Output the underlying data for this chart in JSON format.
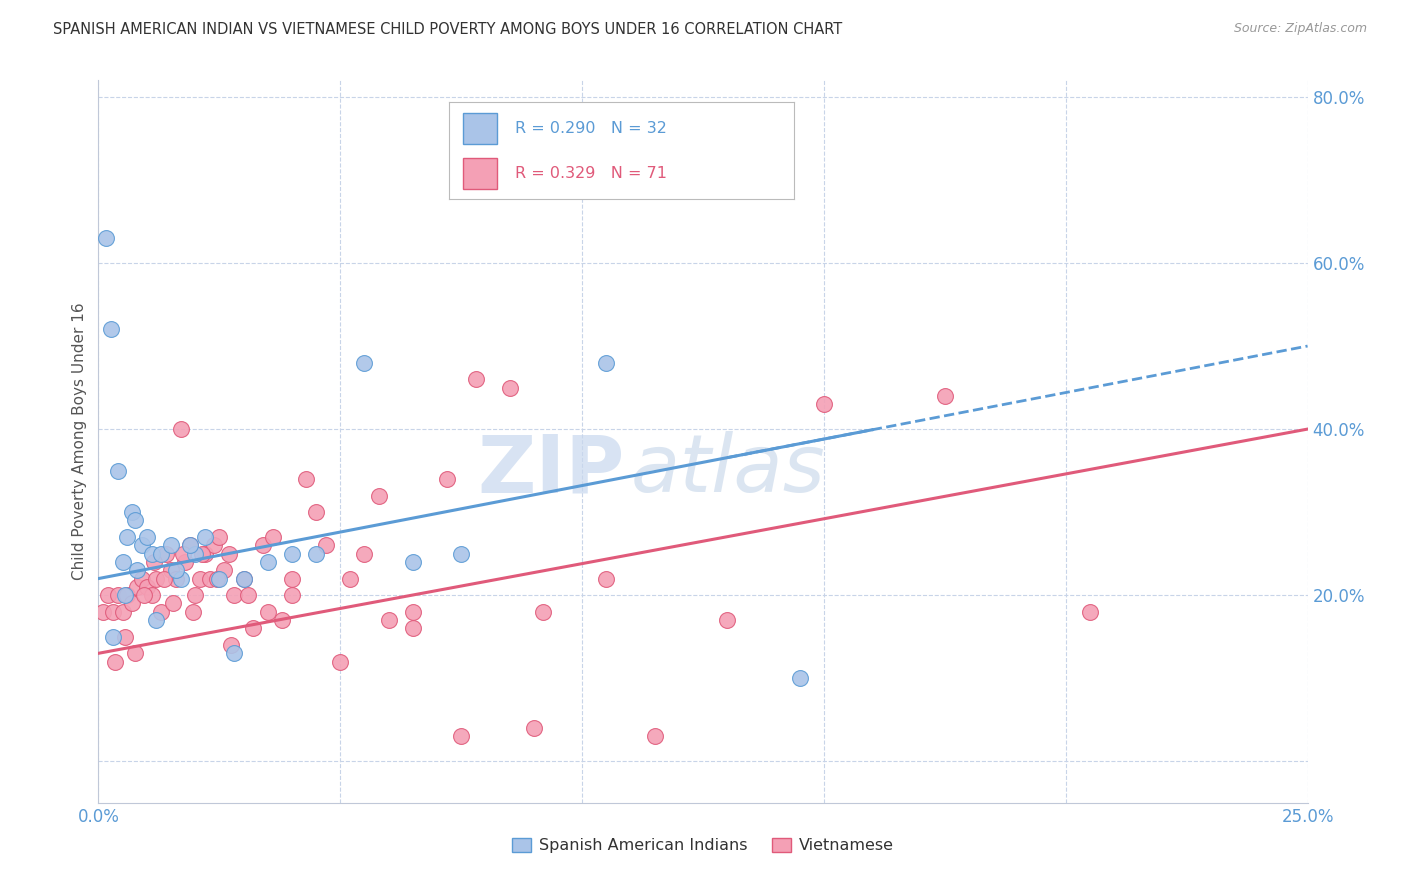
{
  "title": "SPANISH AMERICAN INDIAN VS VIETNAMESE CHILD POVERTY AMONG BOYS UNDER 16 CORRELATION CHART",
  "source": "Source: ZipAtlas.com",
  "ylabel": "Child Poverty Among Boys Under 16",
  "xlim": [
    0.0,
    25.0
  ],
  "ylim": [
    -5.0,
    82.0
  ],
  "yticks": [
    0,
    20,
    40,
    60,
    80
  ],
  "ytick_labels": [
    "",
    "20.0%",
    "40.0%",
    "60.0%",
    "80.0%"
  ],
  "xtick_positions": [
    0,
    5,
    10,
    15,
    20,
    25
  ],
  "xtick_labels": [
    "0.0%",
    "",
    "",
    "",
    "",
    "25.0%"
  ],
  "watermark_zip": "ZIP",
  "watermark_atlas": "atlas",
  "blue_color": "#5b9bd5",
  "pink_color": "#e05a7a",
  "blue_scatter_color": "#aac4e8",
  "pink_scatter_color": "#f4a0b5",
  "blue_R": 0.29,
  "blue_N": 32,
  "pink_R": 0.329,
  "pink_N": 71,
  "blue_scatter_x": [
    0.15,
    0.25,
    0.4,
    0.5,
    0.6,
    0.7,
    0.8,
    0.9,
    1.0,
    1.1,
    1.3,
    1.5,
    1.7,
    2.0,
    2.2,
    2.5,
    3.0,
    3.5,
    4.5,
    5.5,
    6.5,
    7.5,
    10.5,
    0.3,
    0.55,
    0.75,
    1.2,
    1.6,
    1.9,
    2.8,
    4.0,
    14.5
  ],
  "blue_scatter_y": [
    63.0,
    52.0,
    35.0,
    24.0,
    27.0,
    30.0,
    23.0,
    26.0,
    27.0,
    25.0,
    25.0,
    26.0,
    22.0,
    25.0,
    27.0,
    22.0,
    22.0,
    24.0,
    25.0,
    48.0,
    24.0,
    25.0,
    48.0,
    15.0,
    20.0,
    29.0,
    17.0,
    23.0,
    26.0,
    13.0,
    25.0,
    10.0
  ],
  "pink_scatter_x": [
    0.1,
    0.2,
    0.3,
    0.4,
    0.5,
    0.6,
    0.7,
    0.8,
    0.9,
    1.0,
    1.1,
    1.2,
    1.3,
    1.4,
    1.5,
    1.6,
    1.7,
    1.8,
    1.9,
    2.0,
    2.1,
    2.2,
    2.3,
    2.4,
    2.5,
    2.6,
    2.7,
    2.8,
    3.0,
    3.2,
    3.4,
    3.6,
    3.8,
    4.0,
    4.3,
    4.7,
    5.2,
    5.8,
    6.5,
    7.2,
    7.8,
    8.5,
    9.2,
    10.5,
    11.5,
    13.0,
    15.0,
    17.5,
    20.5,
    0.35,
    0.55,
    0.75,
    0.95,
    1.15,
    1.35,
    1.55,
    1.75,
    1.95,
    2.15,
    2.45,
    2.75,
    3.1,
    3.5,
    4.0,
    4.5,
    5.0,
    5.5,
    6.0,
    6.5,
    7.5,
    9.0
  ],
  "pink_scatter_y": [
    18.0,
    20.0,
    18.0,
    20.0,
    18.0,
    20.0,
    19.0,
    21.0,
    22.0,
    21.0,
    20.0,
    22.0,
    18.0,
    25.0,
    23.0,
    22.0,
    40.0,
    24.0,
    26.0,
    20.0,
    22.0,
    25.0,
    22.0,
    26.0,
    27.0,
    23.0,
    25.0,
    20.0,
    22.0,
    16.0,
    26.0,
    27.0,
    17.0,
    22.0,
    34.0,
    26.0,
    22.0,
    32.0,
    18.0,
    34.0,
    46.0,
    45.0,
    18.0,
    22.0,
    3.0,
    17.0,
    43.0,
    44.0,
    18.0,
    12.0,
    15.0,
    13.0,
    20.0,
    24.0,
    22.0,
    19.0,
    25.0,
    18.0,
    25.0,
    22.0,
    14.0,
    20.0,
    18.0,
    20.0,
    30.0,
    12.0,
    25.0,
    17.0,
    16.0,
    3.0,
    4.0
  ],
  "blue_line_x0": 0.0,
  "blue_line_y0": 22.0,
  "blue_line_x1": 25.0,
  "blue_line_y1": 50.0,
  "blue_solid_end_x": 16.0,
  "blue_dash_start_x": 13.0,
  "pink_line_x0": 0.0,
  "pink_line_y0": 13.0,
  "pink_line_x1": 25.0,
  "pink_line_y1": 40.0,
  "grid_color": "#c8d4e8",
  "axis_color": "#c0c8d8",
  "tick_color": "#5b9bd5",
  "ylabel_color": "#555555"
}
